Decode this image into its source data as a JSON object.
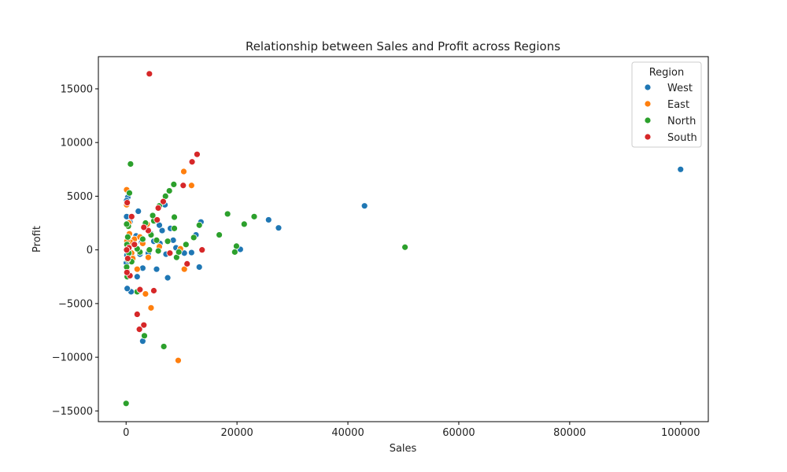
{
  "chart_data": {
    "type": "scatter",
    "title": "Relationship between Sales and Profit across Regions",
    "xlabel": "Sales",
    "ylabel": "Profit",
    "xlim": [
      -5000,
      105000
    ],
    "ylim": [
      -16000,
      18000
    ],
    "xticks": [
      0,
      20000,
      40000,
      60000,
      80000,
      100000
    ],
    "xtick_labels": [
      "0",
      "20000",
      "40000",
      "60000",
      "80000",
      "100000"
    ],
    "yticks": [
      -15000,
      -10000,
      -5000,
      0,
      5000,
      10000,
      15000
    ],
    "ytick_labels": [
      "−15000",
      "−10000",
      "−5000",
      "0",
      "5000",
      "10000",
      "15000"
    ],
    "grid": false,
    "legend": {
      "title": "Region",
      "placement": "top-right"
    },
    "series": [
      {
        "name": "West",
        "color": "#1f77b4",
        "points": [
          [
            100000,
            7500
          ],
          [
            43000,
            4100
          ],
          [
            27500,
            2050
          ],
          [
            25700,
            2800
          ],
          [
            20600,
            50
          ],
          [
            13500,
            2600
          ],
          [
            13200,
            -1600
          ],
          [
            12600,
            1400
          ],
          [
            11800,
            -250
          ],
          [
            10500,
            -300
          ],
          [
            9000,
            200
          ],
          [
            8000,
            2000
          ],
          [
            7500,
            -2600
          ],
          [
            7000,
            4200
          ],
          [
            6500,
            1800
          ],
          [
            6000,
            2300
          ],
          [
            5500,
            -1800
          ],
          [
            5000,
            800
          ],
          [
            4500,
            1500
          ],
          [
            4000,
            -300
          ],
          [
            3000,
            -8500
          ],
          [
            3000,
            -1700
          ],
          [
            2500,
            -400
          ],
          [
            2200,
            3600
          ],
          [
            2000,
            -2500
          ],
          [
            1800,
            1300
          ],
          [
            1500,
            900
          ],
          [
            1200,
            -700
          ],
          [
            900,
            -3900
          ],
          [
            700,
            2600
          ],
          [
            600,
            400
          ],
          [
            500,
            -300
          ],
          [
            400,
            1300
          ],
          [
            300,
            4900
          ],
          [
            200,
            -3600
          ],
          [
            100,
            3100
          ],
          [
            100,
            4600
          ],
          [
            50,
            -1200
          ],
          [
            250,
            200
          ],
          [
            150,
            -500
          ],
          [
            8500,
            900
          ],
          [
            7200,
            -400
          ],
          [
            6100,
            600
          ],
          [
            3500,
            2100
          ],
          [
            2800,
            700
          ]
        ]
      },
      {
        "name": "East",
        "color": "#ff7f0e",
        "points": [
          [
            10400,
            7300
          ],
          [
            11800,
            6000
          ],
          [
            9400,
            -10300
          ],
          [
            10500,
            -1800
          ],
          [
            7900,
            5500
          ],
          [
            4500,
            -5400
          ],
          [
            3500,
            -4100
          ],
          [
            4000,
            -700
          ],
          [
            3000,
            600
          ],
          [
            2000,
            -1800
          ],
          [
            1500,
            1000
          ],
          [
            1000,
            -300
          ],
          [
            800,
            700
          ],
          [
            500,
            2500
          ],
          [
            300,
            300
          ],
          [
            100,
            5600
          ],
          [
            100,
            4200
          ],
          [
            200,
            -2000
          ],
          [
            600,
            1500
          ],
          [
            1200,
            -800
          ],
          [
            2500,
            1200
          ],
          [
            3800,
            2400
          ],
          [
            6000,
            300
          ],
          [
            9800,
            100
          ],
          [
            150,
            800
          ]
        ]
      },
      {
        "name": "North",
        "color": "#2ca02c",
        "points": [
          [
            50300,
            250
          ],
          [
            23100,
            3100
          ],
          [
            21300,
            2400
          ],
          [
            19900,
            350
          ],
          [
            19600,
            -200
          ],
          [
            18300,
            3350
          ],
          [
            16800,
            1400
          ],
          [
            13200,
            2300
          ],
          [
            12200,
            1150
          ],
          [
            10800,
            500
          ],
          [
            9100,
            -700
          ],
          [
            8700,
            3050
          ],
          [
            8600,
            6100
          ],
          [
            8700,
            2000
          ],
          [
            7800,
            5500
          ],
          [
            7100,
            5000
          ],
          [
            6800,
            -9000
          ],
          [
            6000,
            4100
          ],
          [
            5500,
            900
          ],
          [
            5000,
            2700
          ],
          [
            4800,
            3200
          ],
          [
            4500,
            1400
          ],
          [
            4200,
            0
          ],
          [
            3500,
            2500
          ],
          [
            3300,
            -8000
          ],
          [
            3000,
            1000
          ],
          [
            2500,
            -200
          ],
          [
            2000,
            -3900
          ],
          [
            2000,
            100
          ],
          [
            1500,
            500
          ],
          [
            1000,
            -1100
          ],
          [
            800,
            8000
          ],
          [
            600,
            5300
          ],
          [
            500,
            -300
          ],
          [
            400,
            2200
          ],
          [
            300,
            1200
          ],
          [
            200,
            -2500
          ],
          [
            100,
            2400
          ],
          [
            100,
            -1600
          ],
          [
            0,
            -14300
          ],
          [
            150,
            500
          ],
          [
            250,
            -900
          ],
          [
            9500,
            -200
          ],
          [
            7500,
            800
          ],
          [
            5800,
            -100
          ]
        ]
      },
      {
        "name": "South",
        "color": "#d62728",
        "points": [
          [
            4200,
            16400
          ],
          [
            12800,
            8900
          ],
          [
            11900,
            8200
          ],
          [
            10300,
            6000
          ],
          [
            13700,
            0
          ],
          [
            11000,
            -1300
          ],
          [
            7900,
            -300
          ],
          [
            6700,
            4500
          ],
          [
            5800,
            3900
          ],
          [
            5600,
            2800
          ],
          [
            5000,
            -3800
          ],
          [
            4000,
            1800
          ],
          [
            3200,
            2100
          ],
          [
            3200,
            -7000
          ],
          [
            2500,
            -3700
          ],
          [
            2400,
            -7400
          ],
          [
            2000,
            -6000
          ],
          [
            1500,
            500
          ],
          [
            1000,
            3100
          ],
          [
            700,
            -2400
          ],
          [
            500,
            200
          ],
          [
            300,
            -800
          ],
          [
            200,
            4400
          ],
          [
            150,
            -2100
          ],
          [
            100,
            0
          ]
        ]
      }
    ]
  }
}
